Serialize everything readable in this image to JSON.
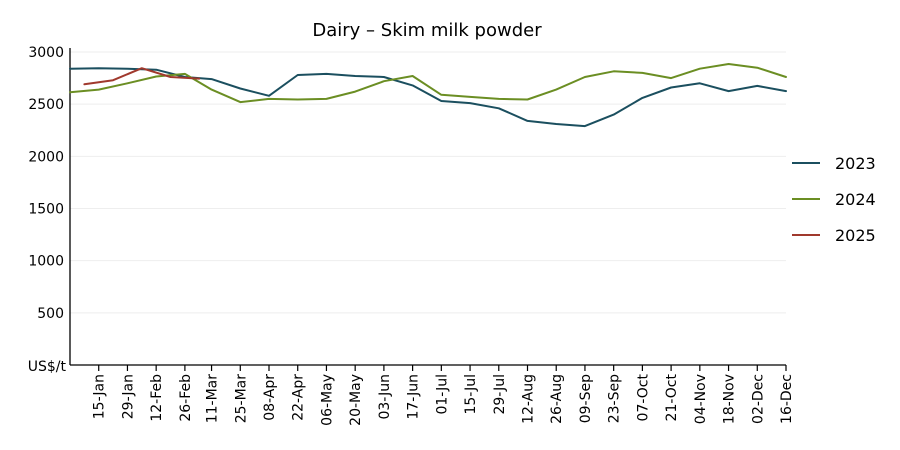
{
  "chart_data": {
    "type": "line",
    "title": "Dairy – Skim milk powder",
    "y_unit_label": "US$/t",
    "ylim": [
      0,
      3000
    ],
    "yticks": [
      500,
      1000,
      1500,
      2000,
      2500,
      3000
    ],
    "x_tick_labels": [
      "15-Jan",
      "29-Jan",
      "12-Feb",
      "26-Feb",
      "11-Mar",
      "25-Mar",
      "08-Apr",
      "22-Apr",
      "06-May",
      "20-May",
      "03-Jun",
      "17-Jun",
      "01-Jul",
      "15-Jul",
      "29-Jul",
      "12-Aug",
      "26-Aug",
      "09-Sep",
      "23-Sep",
      "07-Oct",
      "21-Oct",
      "04-Nov",
      "18-Nov",
      "02-Dec",
      "16-Dec"
    ],
    "grid": "horizontal",
    "legend_position": "right",
    "series": [
      {
        "name": "2023",
        "color": "#1b4f5f",
        "points": [
          {
            "x": "01-Jan",
            "y": 2840
          },
          {
            "x": "15-Jan",
            "y": 2845
          },
          {
            "x": "29-Jan",
            "y": 2840
          },
          {
            "x": "12-Feb",
            "y": 2830
          },
          {
            "x": "26-Feb",
            "y": 2760
          },
          {
            "x": "11-Mar",
            "y": 2740
          },
          {
            "x": "25-Mar",
            "y": 2650
          },
          {
            "x": "08-Apr",
            "y": 2580
          },
          {
            "x": "22-Apr",
            "y": 2780
          },
          {
            "x": "06-May",
            "y": 2790
          },
          {
            "x": "20-May",
            "y": 2770
          },
          {
            "x": "03-Jun",
            "y": 2760
          },
          {
            "x": "17-Jun",
            "y": 2680
          },
          {
            "x": "01-Jul",
            "y": 2530
          },
          {
            "x": "15-Jul",
            "y": 2510
          },
          {
            "x": "29-Jul",
            "y": 2460
          },
          {
            "x": "12-Aug",
            "y": 2340
          },
          {
            "x": "26-Aug",
            "y": 2310
          },
          {
            "x": "09-Sep",
            "y": 2290
          },
          {
            "x": "23-Sep",
            "y": 2400
          },
          {
            "x": "07-Oct",
            "y": 2560
          },
          {
            "x": "21-Oct",
            "y": 2660
          },
          {
            "x": "04-Nov",
            "y": 2700
          },
          {
            "x": "18-Nov",
            "y": 2625
          },
          {
            "x": "02-Dec",
            "y": 2675
          },
          {
            "x": "16-Dec",
            "y": 2625
          }
        ]
      },
      {
        "name": "2024",
        "color": "#6b8e23",
        "points": [
          {
            "x": "01-Jan",
            "y": 2615
          },
          {
            "x": "15-Jan",
            "y": 2640
          },
          {
            "x": "29-Jan",
            "y": 2700
          },
          {
            "x": "12-Feb",
            "y": 2765
          },
          {
            "x": "26-Feb",
            "y": 2790
          },
          {
            "x": "11-Mar",
            "y": 2640
          },
          {
            "x": "25-Mar",
            "y": 2520
          },
          {
            "x": "08-Apr",
            "y": 2550
          },
          {
            "x": "22-Apr",
            "y": 2545
          },
          {
            "x": "06-May",
            "y": 2550
          },
          {
            "x": "20-May",
            "y": 2620
          },
          {
            "x": "03-Jun",
            "y": 2720
          },
          {
            "x": "17-Jun",
            "y": 2770
          },
          {
            "x": "01-Jul",
            "y": 2590
          },
          {
            "x": "15-Jul",
            "y": 2570
          },
          {
            "x": "29-Jul",
            "y": 2550
          },
          {
            "x": "12-Aug",
            "y": 2545
          },
          {
            "x": "26-Aug",
            "y": 2640
          },
          {
            "x": "09-Sep",
            "y": 2760
          },
          {
            "x": "23-Sep",
            "y": 2815
          },
          {
            "x": "07-Oct",
            "y": 2800
          },
          {
            "x": "21-Oct",
            "y": 2750
          },
          {
            "x": "04-Nov",
            "y": 2840
          },
          {
            "x": "18-Nov",
            "y": 2885
          },
          {
            "x": "02-Dec",
            "y": 2850
          },
          {
            "x": "16-Dec",
            "y": 2760
          }
        ]
      },
      {
        "name": "2025",
        "color": "#a0392d",
        "points": [
          {
            "x": "08-Jan",
            "y": 2690
          },
          {
            "x": "22-Jan",
            "y": 2730
          },
          {
            "x": "05-Feb",
            "y": 2845
          },
          {
            "x": "19-Feb",
            "y": 2760
          },
          {
            "x": "05-Mar",
            "y": 2745
          }
        ]
      }
    ]
  }
}
